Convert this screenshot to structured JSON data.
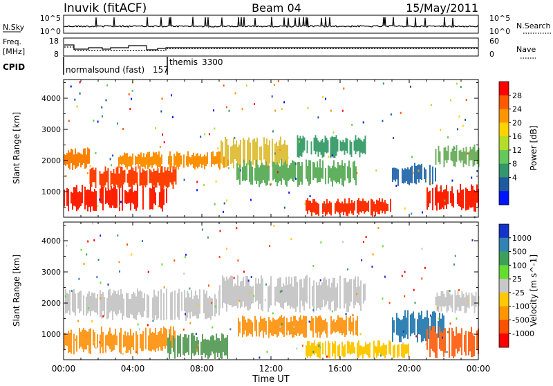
{
  "header": {
    "station": "Inuvik (fitACF)",
    "beam": "Beam 04",
    "date": "15/May/2011"
  },
  "nsky_panel": {
    "left_label": "N.Sky",
    "right_label": "N.Search",
    "left_ticks": [
      "10^5",
      "10^0"
    ],
    "right_ticks": [
      "10^5",
      "10^0"
    ]
  },
  "freq_panel": {
    "left_label_line1": "Freq.",
    "left_label_line2": "[MHz]",
    "right_label": "Nave",
    "left_ticks": [
      "18",
      "8"
    ],
    "right_ticks": [
      "60",
      "0"
    ]
  },
  "cpid": {
    "label": "CPID",
    "modes": [
      {
        "name": "normalsound (fast)",
        "id": "157"
      },
      {
        "name": "themis",
        "id": "3300"
      }
    ]
  },
  "x_axis": {
    "label": "Time UT",
    "ticks": [
      "00:00",
      "04:00",
      "08:00",
      "12:00",
      "16:00",
      "20:00",
      "00:00"
    ]
  },
  "chart_data": [
    {
      "type": "heatmap",
      "name": "power",
      "ylabel": "Slant Range [km]",
      "yticks": [
        1000,
        2000,
        3000,
        4000
      ],
      "ylim": [
        180,
        4600
      ],
      "xlim_hours": [
        0,
        24
      ],
      "colorbar": {
        "label": "Power [dB]",
        "ticks": [
          "28",
          "24",
          "20",
          "16",
          "12",
          "8",
          "4"
        ],
        "colors": [
          "#ff0000",
          "#ff5a00",
          "#ff9600",
          "#ffd200",
          "#b4dc28",
          "#64c85a",
          "#32966e",
          "#1e5aa0",
          "#0014ff"
        ]
      },
      "bands": [
        {
          "t0": 0.0,
          "t1": 6.0,
          "r0": 500,
          "r1": 1100,
          "color": "#ff2000"
        },
        {
          "t0": 0.0,
          "t1": 1.5,
          "r0": 1800,
          "r1": 2300,
          "color": "#ff8000"
        },
        {
          "t0": 1.5,
          "t1": 6.5,
          "r0": 1200,
          "r1": 1700,
          "color": "#ff4000"
        },
        {
          "t0": 3.0,
          "t1": 9.5,
          "r0": 1800,
          "r1": 2200,
          "color": "#ff9000"
        },
        {
          "t0": 9.0,
          "t1": 13.0,
          "r0": 1900,
          "r1": 2600,
          "color": "#e0c040"
        },
        {
          "t0": 10.0,
          "t1": 17.0,
          "r0": 1300,
          "r1": 1900,
          "color": "#60b060"
        },
        {
          "t0": 13.5,
          "t1": 17.5,
          "r0": 2200,
          "r1": 2700,
          "color": "#40a070"
        },
        {
          "t0": 14.0,
          "t1": 19.0,
          "r0": 300,
          "r1": 700,
          "color": "#ff3000"
        },
        {
          "t0": 19.0,
          "t1": 21.5,
          "r0": 1300,
          "r1": 1800,
          "color": "#3070b0"
        },
        {
          "t0": 21.0,
          "t1": 24.0,
          "r0": 500,
          "r1": 1100,
          "color": "#ff2000"
        },
        {
          "t0": 21.5,
          "t1": 24.0,
          "r0": 1900,
          "r1": 2400,
          "color": "#70b060"
        }
      ]
    },
    {
      "type": "heatmap",
      "name": "velocity",
      "ylabel": "Slant Range [km]",
      "yticks": [
        1000,
        2000,
        3000,
        4000
      ],
      "ylim": [
        180,
        4600
      ],
      "xlim_hours": [
        0,
        24
      ],
      "colorbar": {
        "label": "Velocity [m s^-1]",
        "ticks": [
          "1000",
          "500",
          "100",
          "25",
          "-25",
          "-100",
          "-500",
          "-1000"
        ],
        "colors": [
          "#1432c8",
          "#3282b4",
          "#3ca05a",
          "#64dc32",
          "#c8c8c8",
          "#ffc800",
          "#ff9600",
          "#ff5000",
          "#ff0000"
        ]
      },
      "bands": [
        {
          "t0": 0.0,
          "t1": 6.5,
          "r0": 500,
          "r1": 1100,
          "color": "#ff9a20"
        },
        {
          "t0": 0.0,
          "t1": 2.0,
          "r0": 1700,
          "r1": 2300,
          "color": "#c8c8c8"
        },
        {
          "t0": 2.0,
          "t1": 9.0,
          "r0": 1600,
          "r1": 2300,
          "color": "#c8c8c8"
        },
        {
          "t0": 6.0,
          "t1": 9.5,
          "r0": 300,
          "r1": 900,
          "color": "#60a060"
        },
        {
          "t0": 9.0,
          "t1": 17.5,
          "r0": 1900,
          "r1": 2700,
          "color": "#c8c8c8"
        },
        {
          "t0": 10.0,
          "t1": 17.0,
          "r0": 1000,
          "r1": 1500,
          "color": "#ff9a20"
        },
        {
          "t0": 14.0,
          "t1": 20.0,
          "r0": 300,
          "r1": 700,
          "color": "#ffc800"
        },
        {
          "t0": 19.0,
          "t1": 22.0,
          "r0": 900,
          "r1": 1600,
          "color": "#3282b4"
        },
        {
          "t0": 21.0,
          "t1": 24.0,
          "r0": 400,
          "r1": 1100,
          "color": "#ff6a20"
        },
        {
          "t0": 21.5,
          "t1": 24.0,
          "r0": 1800,
          "r1": 2300,
          "color": "#c8c8c8"
        }
      ]
    }
  ]
}
